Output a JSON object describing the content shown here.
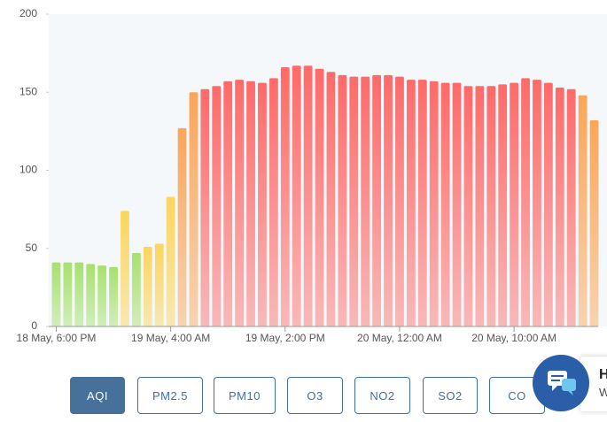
{
  "chart_data": {
    "type": "bar",
    "categories": [
      "18 May, 6:00 PM",
      null,
      null,
      null,
      null,
      null,
      null,
      null,
      null,
      null,
      "19 May, 4:00 AM",
      null,
      null,
      null,
      null,
      null,
      null,
      null,
      null,
      null,
      "19 May, 2:00 PM",
      null,
      null,
      null,
      null,
      null,
      null,
      null,
      null,
      null,
      "20 May, 12:00 AM",
      null,
      null,
      null,
      null,
      null,
      null,
      null,
      null,
      null,
      "20 May, 10:00 AM",
      null,
      null,
      null,
      null,
      null,
      null,
      null
    ],
    "values": [
      41,
      41,
      41,
      40,
      39,
      38,
      74,
      47,
      51,
      53,
      83,
      127,
      150,
      152,
      154,
      157,
      158,
      157,
      156,
      159,
      166,
      167,
      167,
      165,
      163,
      161,
      160,
      160,
      161,
      161,
      160,
      158,
      158,
      157,
      156,
      156,
      154,
      154,
      154,
      155,
      156,
      159,
      158,
      156,
      153,
      152,
      148,
      132
    ],
    "color_bands": [
      {
        "max": 50,
        "color": "#a8e06e"
      },
      {
        "max": 100,
        "color": "#fbd55e"
      },
      {
        "max": 150,
        "color": "#f9a65a"
      },
      {
        "max": 200,
        "color": "#fe6a69"
      }
    ],
    "ylim": [
      0,
      200
    ],
    "yticks": [
      0,
      50,
      100,
      150,
      200
    ]
  },
  "tabs": [
    "AQI",
    "PM2.5",
    "PM10",
    "O3",
    "NO2",
    "SO2",
    "CO"
  ],
  "active_tab": 0,
  "chat": {
    "title": "H",
    "subtitle": "W"
  }
}
